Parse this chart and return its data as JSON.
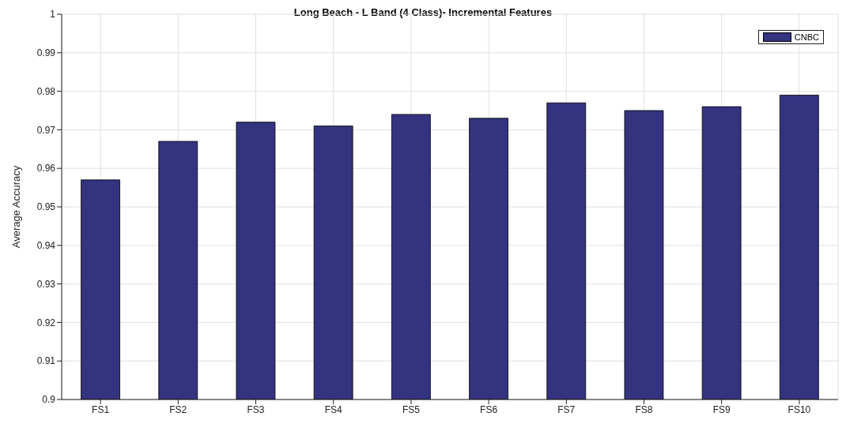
{
  "chart_data": {
    "type": "bar",
    "title": "Long Beach - L Band (4 Class)- Incremental Features",
    "ylabel": "Average Accuracy",
    "categories": [
      "FS1",
      "FS2",
      "FS3",
      "FS4",
      "FS5",
      "FS6",
      "FS7",
      "FS8",
      "FS9",
      "FS10"
    ],
    "series": [
      {
        "name": "CNBC",
        "color": "#333380",
        "values": [
          0.957,
          0.967,
          0.972,
          0.971,
          0.974,
          0.973,
          0.977,
          0.975,
          0.976,
          0.979
        ]
      }
    ],
    "ylim": [
      0.9,
      1
    ],
    "yticks": [
      0.9,
      0.91,
      0.92,
      0.93,
      0.94,
      0.95,
      0.96,
      0.97,
      0.98,
      0.99,
      1
    ],
    "grid": true,
    "legend": "top right"
  }
}
